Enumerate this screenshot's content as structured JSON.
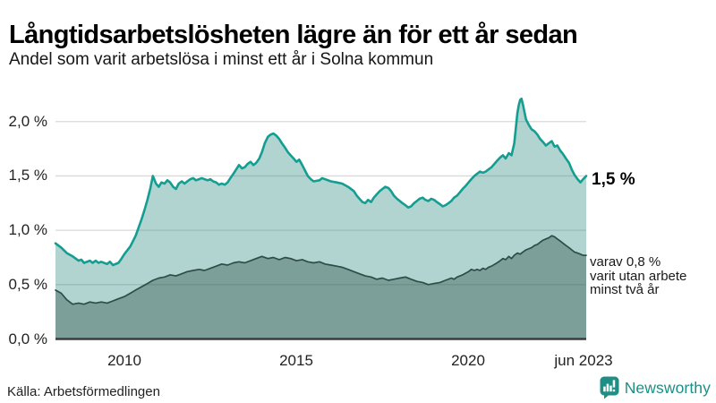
{
  "header": {
    "title": "Långtidsarbetslösheten lägre än för ett år sedan",
    "subtitle": "Andel som varit arbetslösa i minst ett år i Solna kommun"
  },
  "footer": {
    "source": "Källa: Arbetsförmedlingen",
    "brand": "Newsworthy",
    "brand_icon": "newsworthy-speech-bubble-bar-chart-icon",
    "brand_color": "#1f8e84"
  },
  "colors": {
    "line_1yr": "#149e91",
    "fill_1yr": "rgba(52,143,133,0.38)",
    "line_2yr": "#2f4d48",
    "fill_2yr": "rgba(50,85,78,0.42)",
    "gridline": "#d9d9d9",
    "baseline": "#3c3c3c"
  },
  "chart_data": {
    "type": "area",
    "title": "Långtidsarbetslösheten lägre än för ett år sedan",
    "subtitle": "Andel som varit arbetslösa i minst ett år i Solna kommun",
    "unit": "%",
    "grid": true,
    "legend_position": "none",
    "xlim": [
      2008.0,
      2023.42
    ],
    "ylim": [
      0,
      2.2
    ],
    "yticks": [
      {
        "value": 2.0,
        "label": "2,0 %"
      },
      {
        "value": 1.5,
        "label": "1,5 %"
      },
      {
        "value": 1.0,
        "label": "1,0 %"
      },
      {
        "value": 0.5,
        "label": "0,5 %"
      },
      {
        "value": 0.0,
        "label": "0,0 %"
      }
    ],
    "xticks": [
      {
        "value": 2010,
        "label": "2010"
      },
      {
        "value": 2015,
        "label": "2015"
      },
      {
        "value": 2020,
        "label": "2020"
      },
      {
        "value": 2023.42,
        "label": "jun 2023"
      }
    ],
    "end_labels": {
      "primary": "1,5 %",
      "secondary_lines": [
        "varav 0,8 %",
        "varit utan arbete",
        "minst två år"
      ]
    },
    "series": [
      {
        "name": "Arbetslösa minst ett år",
        "end_value": 1.5,
        "points": [
          [
            2008.0,
            0.88
          ],
          [
            2008.17,
            0.84
          ],
          [
            2008.33,
            0.79
          ],
          [
            2008.5,
            0.76
          ],
          [
            2008.67,
            0.72
          ],
          [
            2008.75,
            0.73
          ],
          [
            2008.83,
            0.7
          ],
          [
            2009.0,
            0.72
          ],
          [
            2009.08,
            0.7
          ],
          [
            2009.17,
            0.72
          ],
          [
            2009.25,
            0.7
          ],
          [
            2009.33,
            0.71
          ],
          [
            2009.5,
            0.69
          ],
          [
            2009.58,
            0.71
          ],
          [
            2009.67,
            0.68
          ],
          [
            2009.83,
            0.7
          ],
          [
            2009.92,
            0.74
          ],
          [
            2010.0,
            0.78
          ],
          [
            2010.17,
            0.85
          ],
          [
            2010.33,
            0.95
          ],
          [
            2010.5,
            1.1
          ],
          [
            2010.58,
            1.18
          ],
          [
            2010.67,
            1.28
          ],
          [
            2010.75,
            1.38
          ],
          [
            2010.83,
            1.5
          ],
          [
            2010.92,
            1.43
          ],
          [
            2011.0,
            1.4
          ],
          [
            2011.08,
            1.44
          ],
          [
            2011.17,
            1.43
          ],
          [
            2011.25,
            1.46
          ],
          [
            2011.33,
            1.44
          ],
          [
            2011.42,
            1.4
          ],
          [
            2011.5,
            1.38
          ],
          [
            2011.58,
            1.43
          ],
          [
            2011.67,
            1.45
          ],
          [
            2011.75,
            1.43
          ],
          [
            2011.83,
            1.45
          ],
          [
            2011.92,
            1.47
          ],
          [
            2012.0,
            1.48
          ],
          [
            2012.08,
            1.46
          ],
          [
            2012.17,
            1.47
          ],
          [
            2012.25,
            1.48
          ],
          [
            2012.33,
            1.47
          ],
          [
            2012.42,
            1.46
          ],
          [
            2012.5,
            1.47
          ],
          [
            2012.58,
            1.45
          ],
          [
            2012.67,
            1.44
          ],
          [
            2012.75,
            1.42
          ],
          [
            2012.83,
            1.43
          ],
          [
            2012.92,
            1.42
          ],
          [
            2013.0,
            1.44
          ],
          [
            2013.08,
            1.48
          ],
          [
            2013.17,
            1.52
          ],
          [
            2013.25,
            1.56
          ],
          [
            2013.33,
            1.6
          ],
          [
            2013.42,
            1.57
          ],
          [
            2013.5,
            1.58
          ],
          [
            2013.58,
            1.61
          ],
          [
            2013.67,
            1.63
          ],
          [
            2013.75,
            1.6
          ],
          [
            2013.83,
            1.62
          ],
          [
            2013.92,
            1.66
          ],
          [
            2014.0,
            1.72
          ],
          [
            2014.08,
            1.8
          ],
          [
            2014.17,
            1.86
          ],
          [
            2014.25,
            1.88
          ],
          [
            2014.33,
            1.89
          ],
          [
            2014.42,
            1.87
          ],
          [
            2014.5,
            1.84
          ],
          [
            2014.58,
            1.8
          ],
          [
            2014.67,
            1.76
          ],
          [
            2014.75,
            1.72
          ],
          [
            2014.83,
            1.69
          ],
          [
            2014.92,
            1.66
          ],
          [
            2015.0,
            1.63
          ],
          [
            2015.08,
            1.65
          ],
          [
            2015.17,
            1.6
          ],
          [
            2015.25,
            1.55
          ],
          [
            2015.33,
            1.5
          ],
          [
            2015.42,
            1.47
          ],
          [
            2015.5,
            1.45
          ],
          [
            2015.67,
            1.46
          ],
          [
            2015.75,
            1.48
          ],
          [
            2015.83,
            1.47
          ],
          [
            2016.0,
            1.45
          ],
          [
            2016.17,
            1.44
          ],
          [
            2016.33,
            1.43
          ],
          [
            2016.5,
            1.4
          ],
          [
            2016.67,
            1.36
          ],
          [
            2016.75,
            1.32
          ],
          [
            2016.83,
            1.29
          ],
          [
            2016.92,
            1.26
          ],
          [
            2017.0,
            1.25
          ],
          [
            2017.08,
            1.28
          ],
          [
            2017.17,
            1.26
          ],
          [
            2017.25,
            1.3
          ],
          [
            2017.33,
            1.33
          ],
          [
            2017.42,
            1.36
          ],
          [
            2017.5,
            1.38
          ],
          [
            2017.58,
            1.4
          ],
          [
            2017.67,
            1.39
          ],
          [
            2017.75,
            1.36
          ],
          [
            2017.83,
            1.32
          ],
          [
            2017.92,
            1.29
          ],
          [
            2018.0,
            1.27
          ],
          [
            2018.08,
            1.25
          ],
          [
            2018.17,
            1.23
          ],
          [
            2018.25,
            1.21
          ],
          [
            2018.33,
            1.22
          ],
          [
            2018.42,
            1.25
          ],
          [
            2018.5,
            1.27
          ],
          [
            2018.58,
            1.29
          ],
          [
            2018.67,
            1.3
          ],
          [
            2018.75,
            1.28
          ],
          [
            2018.83,
            1.27
          ],
          [
            2018.92,
            1.29
          ],
          [
            2019.0,
            1.28
          ],
          [
            2019.08,
            1.26
          ],
          [
            2019.17,
            1.24
          ],
          [
            2019.25,
            1.22
          ],
          [
            2019.33,
            1.23
          ],
          [
            2019.42,
            1.25
          ],
          [
            2019.5,
            1.27
          ],
          [
            2019.58,
            1.3
          ],
          [
            2019.67,
            1.32
          ],
          [
            2019.75,
            1.35
          ],
          [
            2019.83,
            1.38
          ],
          [
            2019.92,
            1.41
          ],
          [
            2020.0,
            1.44
          ],
          [
            2020.08,
            1.47
          ],
          [
            2020.17,
            1.5
          ],
          [
            2020.25,
            1.52
          ],
          [
            2020.33,
            1.54
          ],
          [
            2020.42,
            1.53
          ],
          [
            2020.5,
            1.54
          ],
          [
            2020.58,
            1.56
          ],
          [
            2020.67,
            1.58
          ],
          [
            2020.75,
            1.61
          ],
          [
            2020.83,
            1.64
          ],
          [
            2020.92,
            1.67
          ],
          [
            2021.0,
            1.69
          ],
          [
            2021.08,
            1.66
          ],
          [
            2021.17,
            1.71
          ],
          [
            2021.25,
            1.69
          ],
          [
            2021.33,
            1.8
          ],
          [
            2021.38,
            1.95
          ],
          [
            2021.42,
            2.08
          ],
          [
            2021.46,
            2.15
          ],
          [
            2021.5,
            2.2
          ],
          [
            2021.54,
            2.21
          ],
          [
            2021.58,
            2.16
          ],
          [
            2021.63,
            2.08
          ],
          [
            2021.67,
            2.02
          ],
          [
            2021.75,
            1.97
          ],
          [
            2021.83,
            1.93
          ],
          [
            2021.92,
            1.91
          ],
          [
            2022.0,
            1.88
          ],
          [
            2022.08,
            1.84
          ],
          [
            2022.17,
            1.81
          ],
          [
            2022.25,
            1.78
          ],
          [
            2022.33,
            1.8
          ],
          [
            2022.42,
            1.82
          ],
          [
            2022.5,
            1.77
          ],
          [
            2022.58,
            1.78
          ],
          [
            2022.67,
            1.73
          ],
          [
            2022.75,
            1.7
          ],
          [
            2022.83,
            1.66
          ],
          [
            2022.92,
            1.62
          ],
          [
            2023.0,
            1.56
          ],
          [
            2023.08,
            1.51
          ],
          [
            2023.17,
            1.47
          ],
          [
            2023.25,
            1.44
          ],
          [
            2023.33,
            1.47
          ],
          [
            2023.42,
            1.5
          ]
        ]
      },
      {
        "name": "varav arbetslösa minst två år",
        "end_value": 0.8,
        "points": [
          [
            2008.0,
            0.45
          ],
          [
            2008.17,
            0.42
          ],
          [
            2008.33,
            0.36
          ],
          [
            2008.5,
            0.32
          ],
          [
            2008.67,
            0.33
          ],
          [
            2008.83,
            0.32
          ],
          [
            2009.0,
            0.34
          ],
          [
            2009.17,
            0.33
          ],
          [
            2009.33,
            0.34
          ],
          [
            2009.5,
            0.33
          ],
          [
            2009.67,
            0.35
          ],
          [
            2009.83,
            0.37
          ],
          [
            2010.0,
            0.39
          ],
          [
            2010.17,
            0.42
          ],
          [
            2010.33,
            0.45
          ],
          [
            2010.5,
            0.48
          ],
          [
            2010.67,
            0.51
          ],
          [
            2010.83,
            0.54
          ],
          [
            2011.0,
            0.56
          ],
          [
            2011.17,
            0.57
          ],
          [
            2011.33,
            0.59
          ],
          [
            2011.5,
            0.58
          ],
          [
            2011.67,
            0.6
          ],
          [
            2011.83,
            0.62
          ],
          [
            2012.0,
            0.63
          ],
          [
            2012.17,
            0.64
          ],
          [
            2012.33,
            0.63
          ],
          [
            2012.5,
            0.65
          ],
          [
            2012.67,
            0.67
          ],
          [
            2012.83,
            0.69
          ],
          [
            2013.0,
            0.68
          ],
          [
            2013.17,
            0.7
          ],
          [
            2013.33,
            0.71
          ],
          [
            2013.5,
            0.7
          ],
          [
            2013.67,
            0.72
          ],
          [
            2013.83,
            0.74
          ],
          [
            2014.0,
            0.76
          ],
          [
            2014.17,
            0.74
          ],
          [
            2014.33,
            0.75
          ],
          [
            2014.5,
            0.73
          ],
          [
            2014.67,
            0.75
          ],
          [
            2014.83,
            0.74
          ],
          [
            2015.0,
            0.72
          ],
          [
            2015.17,
            0.73
          ],
          [
            2015.33,
            0.71
          ],
          [
            2015.5,
            0.7
          ],
          [
            2015.67,
            0.71
          ],
          [
            2015.83,
            0.69
          ],
          [
            2016.0,
            0.68
          ],
          [
            2016.17,
            0.67
          ],
          [
            2016.33,
            0.66
          ],
          [
            2016.5,
            0.64
          ],
          [
            2016.67,
            0.62
          ],
          [
            2016.83,
            0.6
          ],
          [
            2017.0,
            0.58
          ],
          [
            2017.17,
            0.57
          ],
          [
            2017.33,
            0.55
          ],
          [
            2017.5,
            0.56
          ],
          [
            2017.67,
            0.54
          ],
          [
            2017.83,
            0.55
          ],
          [
            2018.0,
            0.56
          ],
          [
            2018.17,
            0.57
          ],
          [
            2018.33,
            0.55
          ],
          [
            2018.5,
            0.53
          ],
          [
            2018.67,
            0.52
          ],
          [
            2018.83,
            0.5
          ],
          [
            2019.0,
            0.51
          ],
          [
            2019.17,
            0.52
          ],
          [
            2019.33,
            0.54
          ],
          [
            2019.5,
            0.56
          ],
          [
            2019.58,
            0.55
          ],
          [
            2019.67,
            0.57
          ],
          [
            2019.83,
            0.59
          ],
          [
            2020.0,
            0.62
          ],
          [
            2020.08,
            0.64
          ],
          [
            2020.17,
            0.63
          ],
          [
            2020.25,
            0.64
          ],
          [
            2020.33,
            0.63
          ],
          [
            2020.42,
            0.65
          ],
          [
            2020.5,
            0.64
          ],
          [
            2020.58,
            0.66
          ],
          [
            2020.67,
            0.67
          ],
          [
            2020.83,
            0.7
          ],
          [
            2020.92,
            0.72
          ],
          [
            2021.0,
            0.74
          ],
          [
            2021.08,
            0.73
          ],
          [
            2021.17,
            0.76
          ],
          [
            2021.25,
            0.74
          ],
          [
            2021.33,
            0.77
          ],
          [
            2021.42,
            0.79
          ],
          [
            2021.5,
            0.78
          ],
          [
            2021.58,
            0.8
          ],
          [
            2021.67,
            0.82
          ],
          [
            2021.83,
            0.84
          ],
          [
            2021.92,
            0.86
          ],
          [
            2022.0,
            0.87
          ],
          [
            2022.08,
            0.89
          ],
          [
            2022.17,
            0.91
          ],
          [
            2022.25,
            0.92
          ],
          [
            2022.33,
            0.93
          ],
          [
            2022.42,
            0.95
          ],
          [
            2022.5,
            0.94
          ],
          [
            2022.58,
            0.92
          ],
          [
            2022.67,
            0.9
          ],
          [
            2022.75,
            0.88
          ],
          [
            2022.83,
            0.86
          ],
          [
            2022.92,
            0.84
          ],
          [
            2023.0,
            0.82
          ],
          [
            2023.08,
            0.8
          ],
          [
            2023.17,
            0.79
          ],
          [
            2023.25,
            0.78
          ],
          [
            2023.33,
            0.77
          ],
          [
            2023.42,
            0.77
          ]
        ]
      }
    ]
  }
}
